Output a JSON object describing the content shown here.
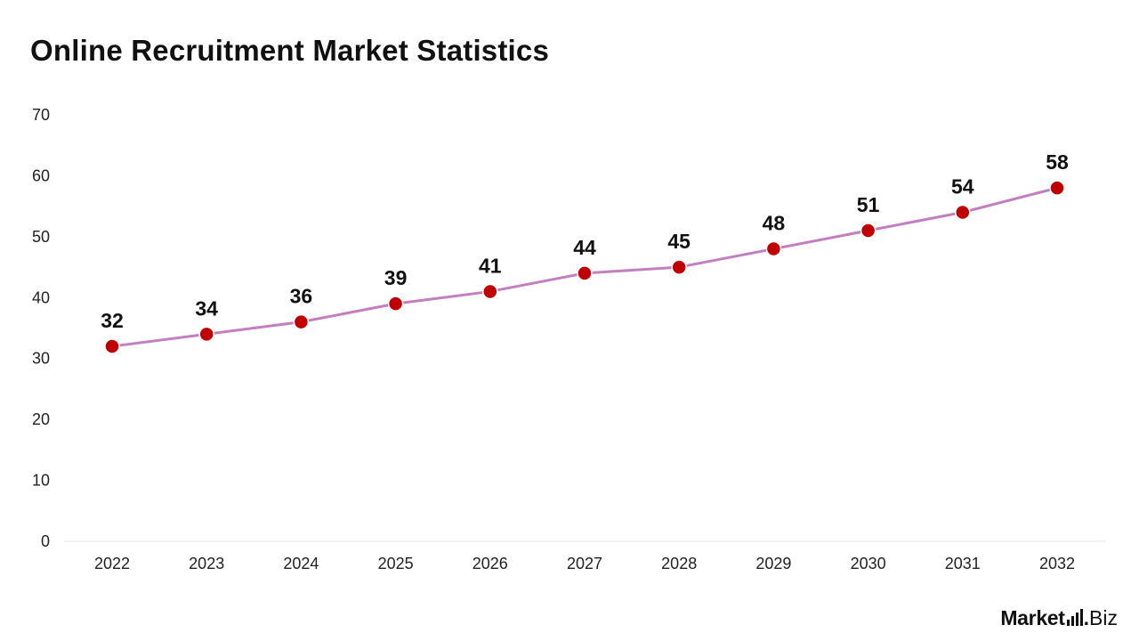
{
  "title": "Online Recruitment Market Statistics",
  "brand": {
    "name_prefix": "Market",
    "name_dot": ".",
    "name_suffix": "Biz"
  },
  "colors": {
    "line": "#c27fbf",
    "marker": "#c00000",
    "marker_stroke": "#ffffff",
    "axis_text": "#222222",
    "label_text": "#111111",
    "baseline": "#e3e3e3"
  },
  "chart_data": {
    "type": "line",
    "title": "Online Recruitment Market Statistics",
    "xlabel": "",
    "ylabel": "",
    "categories": [
      "2022",
      "2023",
      "2024",
      "2025",
      "2026",
      "2027",
      "2028",
      "2029",
      "2030",
      "2031",
      "2032"
    ],
    "values": [
      32,
      34,
      36,
      39,
      41,
      44,
      45,
      48,
      51,
      54,
      58
    ],
    "yticks": [
      0,
      10,
      20,
      30,
      40,
      50,
      60,
      70
    ],
    "ylim": [
      0,
      70
    ],
    "grid": false,
    "legend": "none",
    "data_labels": true
  }
}
